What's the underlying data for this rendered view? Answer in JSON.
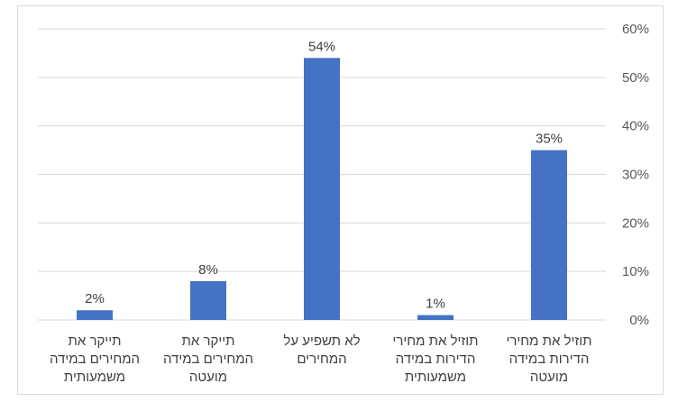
{
  "chart_data": {
    "type": "bar",
    "direction": "rtl",
    "categories": [
      "תוזיל את מחירי הדירות במידה מועטה",
      "תוזיל את מחירי הדירות במידה משמעותית",
      "לא תשפיע על המחירים",
      "תייקר את המחירים במידה מועטה",
      "תייקר את המחירים במידה משמעותית"
    ],
    "category_lines": [
      [
        "תוזיל את מחירי",
        "הדירות במידה",
        "מועטה"
      ],
      [
        "תוזיל את מחירי",
        "הדירות במידה",
        "משמעותית"
      ],
      [
        "לא תשפיע על",
        "המחירים"
      ],
      [
        "תייקר את",
        "המחירים במידה",
        "מועטה"
      ],
      [
        "תייקר את",
        "המחירים במידה",
        "משמעותית"
      ]
    ],
    "values": [
      35,
      1,
      54,
      8,
      2
    ],
    "value_labels": [
      "35%",
      "1%",
      "54%",
      "8%",
      "2%"
    ],
    "ylim": [
      0,
      60
    ],
    "yticks": [
      0,
      10,
      20,
      30,
      40,
      50,
      60
    ],
    "ytick_labels": [
      "0%",
      "10%",
      "20%",
      "30%",
      "40%",
      "50%",
      "60%"
    ],
    "y_axis_side": "right",
    "grid": true,
    "legend": "none",
    "bar_color": "#4472C4",
    "grid_color": "#d9d9d9"
  }
}
